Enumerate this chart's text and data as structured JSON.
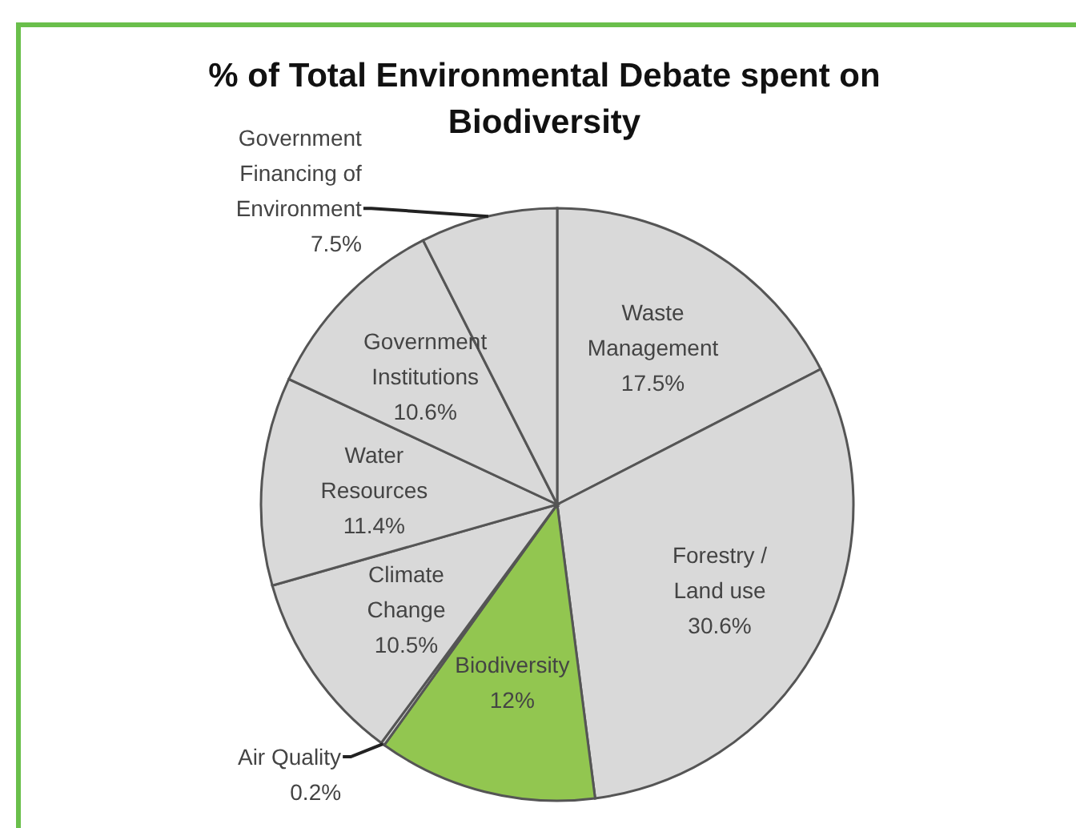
{
  "chart_data": {
    "type": "pie",
    "title": "% of Total Environmental Debate spent on Biodiversity",
    "categories": [
      "Waste Management",
      "Forestry / Land use",
      "Biodiversity",
      "Air Quality",
      "Climate Change",
      "Water Resources",
      "Government Institutions",
      "Government Financing of Environment"
    ],
    "values": [
      17.5,
      30.6,
      12,
      0.2,
      10.5,
      11.4,
      10.6,
      7.5
    ],
    "value_labels": [
      "17.5%",
      "30.6%",
      "12%",
      "0.2%",
      "10.5%",
      "11.4%",
      "10.6%",
      "7.5%"
    ],
    "colors": [
      "#d9d9d9",
      "#d9d9d9",
      "#92c650",
      "#d9d9d9",
      "#d9d9d9",
      "#d9d9d9",
      "#d9d9d9",
      "#d9d9d9"
    ],
    "legend": false
  }
}
